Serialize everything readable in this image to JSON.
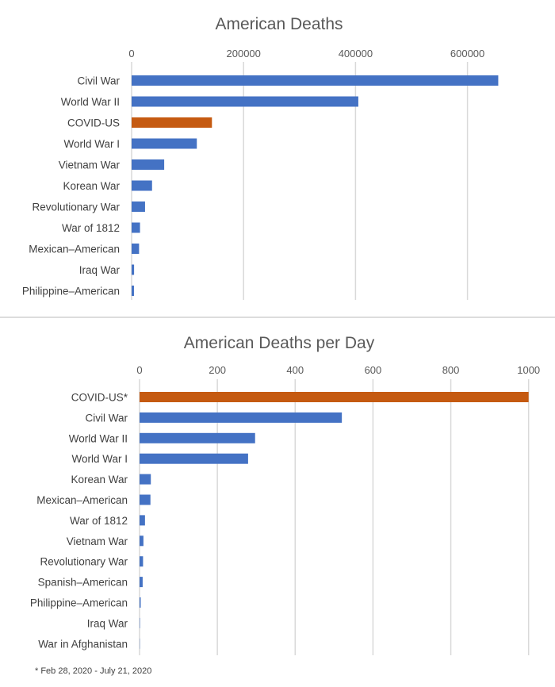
{
  "colors": {
    "war": "#4472C4",
    "covid": "#C55A11"
  },
  "chart_data": [
    {
      "type": "bar",
      "orientation": "horizontal",
      "title": "American Deaths",
      "xlim": [
        0,
        660000
      ],
      "ticks": [
        "0",
        "200000",
        "400000",
        "600000"
      ],
      "tick_values": [
        0,
        200000,
        400000,
        600000
      ],
      "grid": true,
      "categories": [
        "Civil War",
        "World War II",
        "COVID-US",
        "World War I",
        "Vietnam War",
        "Korean War",
        "Revolutionary War",
        "War of 1812",
        "Mexican–American",
        "Iraq War",
        "Philippine–American"
      ],
      "values": [
        655000,
        405000,
        143500,
        116500,
        58200,
        36500,
        24000,
        15000,
        13300,
        4400,
        4200
      ],
      "highlight": "COVID-US"
    },
    {
      "type": "bar",
      "orientation": "horizontal",
      "title": "American Deaths per Day",
      "xlim": [
        0,
        1000
      ],
      "ticks": [
        "0",
        "200",
        "400",
        "600",
        "800",
        "1000"
      ],
      "tick_values": [
        0,
        200,
        400,
        600,
        800,
        1000
      ],
      "grid": true,
      "categories": [
        "COVID-US*",
        "Civil War",
        "World War II",
        "World War I",
        "Korean War",
        "Mexican–American",
        "War of 1812",
        "Vietnam War",
        "Revolutionary War",
        "Spanish–American",
        "Philippine–American",
        "Iraq War",
        "War in Afghanistan"
      ],
      "values": [
        1000,
        520,
        297,
        279,
        29,
        28,
        14,
        10,
        9,
        8,
        3,
        1,
        0.3
      ],
      "highlight": "COVID-US*",
      "footnote": "* Feb 28, 2020 - July 21, 2020"
    }
  ]
}
